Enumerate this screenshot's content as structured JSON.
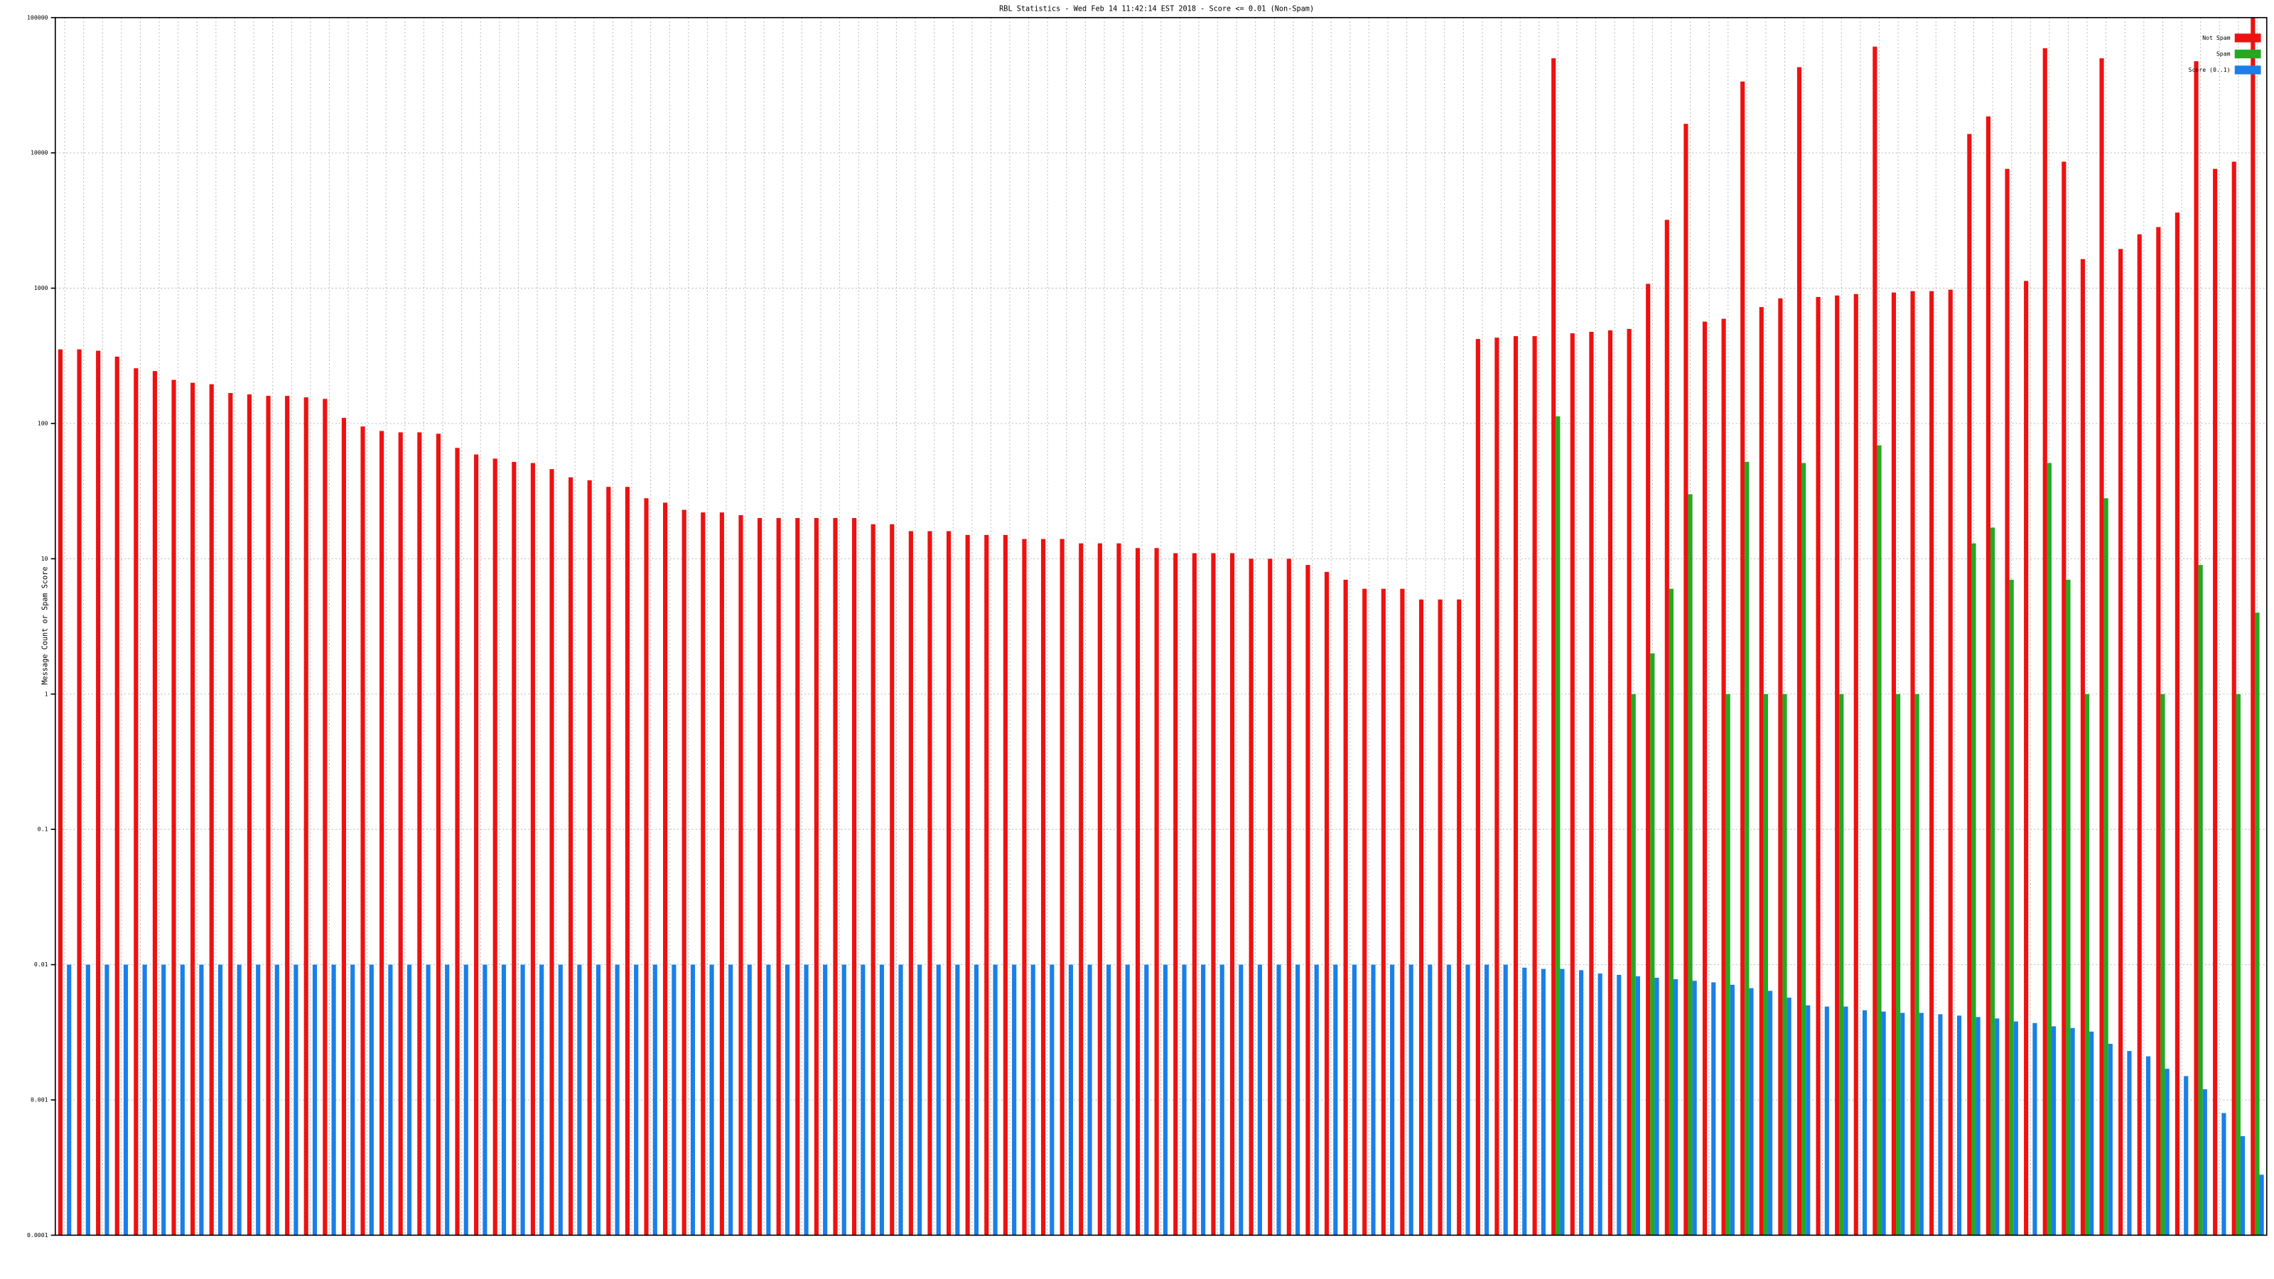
{
  "chart_data": {
    "type": "bar",
    "title": "RBL Statistics - Wed Feb 14 11:42:14 EST 2018 - Score <= 0.01 (Non-Spam)",
    "y_label": "Message Count or Spam Score",
    "yscale": "log",
    "grid": true,
    "legend": "upper right",
    "ylim": [
      0.0001,
      100000
    ],
    "yticks": [
      0.0001,
      0.001,
      0.01,
      0.1,
      1,
      10,
      100,
      1000,
      10000,
      100000
    ],
    "categories": [
      null,
      null,
      null,
      null,
      null,
      null,
      null,
      null,
      null,
      null,
      null,
      null,
      null,
      null,
      null,
      null,
      null,
      null,
      null,
      null,
      null,
      null,
      null,
      null,
      null,
      null,
      null,
      null,
      null,
      null,
      null,
      null,
      null,
      null,
      null,
      null,
      null,
      null,
      null,
      null,
      null,
      null,
      null,
      null,
      null,
      null,
      null,
      null,
      null,
      null,
      null,
      null,
      null,
      null,
      null,
      null,
      null,
      null,
      null,
      null,
      null,
      null,
      null,
      null,
      null,
      null,
      null,
      null,
      null,
      null,
      null,
      null,
      null,
      null,
      null,
      null,
      null,
      null,
      null,
      null,
      null,
      null,
      null,
      null,
      null,
      null,
      null,
      null,
      null,
      null,
      null,
      null,
      null,
      null,
      null,
      null,
      null,
      null,
      null,
      null,
      null,
      null,
      null,
      null,
      null,
      null,
      null,
      null,
      null,
      null,
      null,
      null,
      null,
      null,
      null,
      null,
      null
    ],
    "series": [
      {
        "name": "Not Spam",
        "color": "#ee1111",
        "values": [
          353,
          353,
          345,
          312,
          256,
          244,
          210,
          200,
          195,
          168,
          164,
          160,
          160,
          156,
          152,
          110,
          95,
          88,
          86,
          86,
          84,
          66,
          59,
          55,
          52,
          51,
          46,
          40,
          38,
          34,
          34,
          28,
          26,
          23,
          22,
          22,
          21,
          20,
          20,
          20,
          20,
          20,
          20,
          18,
          18,
          16,
          16,
          16,
          15,
          15,
          15,
          14,
          14,
          14,
          13,
          13,
          13,
          12,
          12,
          11,
          11,
          11,
          11,
          10,
          10,
          10,
          9,
          8,
          7,
          6,
          6,
          6,
          5,
          5,
          5,
          421,
          431,
          442,
          442,
          50000,
          464,
          476,
          488,
          500,
          1077,
          3200,
          16400,
          566,
          594,
          33700,
          725,
          841,
          43000,
          861,
          883,
          905,
          61000,
          929,
          951,
          951,
          975,
          13800,
          18600,
          7620,
          1132,
          59400,
          8610,
          1641,
          50000,
          1950,
          2500,
          2830,
          3620,
          47600,
          7620,
          8610,
          100000
        ]
      },
      {
        "name": "Spam",
        "color": "#22aa22",
        "values": [
          null,
          null,
          null,
          null,
          null,
          null,
          null,
          null,
          null,
          null,
          null,
          null,
          null,
          null,
          null,
          null,
          null,
          null,
          null,
          null,
          null,
          null,
          null,
          null,
          null,
          null,
          null,
          null,
          null,
          null,
          null,
          null,
          null,
          null,
          null,
          null,
          null,
          null,
          null,
          null,
          null,
          null,
          null,
          null,
          null,
          null,
          null,
          null,
          null,
          null,
          null,
          null,
          null,
          null,
          null,
          null,
          null,
          null,
          null,
          null,
          null,
          null,
          null,
          null,
          null,
          null,
          null,
          null,
          null,
          null,
          null,
          null,
          null,
          null,
          null,
          null,
          null,
          null,
          null,
          113,
          null,
          null,
          null,
          1,
          2,
          6,
          30,
          null,
          1,
          52,
          1,
          1,
          51,
          null,
          1,
          null,
          69,
          1,
          1,
          null,
          null,
          13,
          17,
          7,
          null,
          51,
          7,
          1,
          28,
          null,
          null,
          1,
          null,
          9,
          null,
          1,
          4
        ]
      },
      {
        "name": "Score (0..1)",
        "color": "#1a7fe8",
        "values": [
          0.01,
          0.01,
          0.01,
          0.01,
          0.01,
          0.01,
          0.01,
          0.01,
          0.01,
          0.01,
          0.01,
          0.01,
          0.01,
          0.01,
          0.01,
          0.01,
          0.01,
          0.01,
          0.01,
          0.01,
          0.01,
          0.01,
          0.01,
          0.01,
          0.01,
          0.01,
          0.01,
          0.01,
          0.01,
          0.01,
          0.01,
          0.01,
          0.01,
          0.01,
          0.01,
          0.01,
          0.01,
          0.01,
          0.01,
          0.01,
          0.01,
          0.01,
          0.01,
          0.01,
          0.01,
          0.01,
          0.01,
          0.01,
          0.01,
          0.01,
          0.01,
          0.01,
          0.01,
          0.01,
          0.01,
          0.01,
          0.01,
          0.01,
          0.01,
          0.01,
          0.01,
          0.01,
          0.01,
          0.01,
          0.01,
          0.01,
          0.01,
          0.01,
          0.01,
          0.01,
          0.01,
          0.01,
          0.01,
          0.01,
          0.01,
          0.01,
          0.01,
          0.0095,
          0.0093,
          0.0093,
          0.0091,
          0.0086,
          0.0084,
          0.0082,
          0.008,
          0.0078,
          0.0076,
          0.0074,
          0.0071,
          0.0067,
          0.0064,
          0.0057,
          0.005,
          0.0049,
          0.0049,
          0.0046,
          0.0045,
          0.0044,
          0.0044,
          0.0043,
          0.0042,
          0.0041,
          0.004,
          0.0038,
          0.0037,
          0.0035,
          0.0034,
          0.0032,
          0.0026,
          0.0023,
          0.0021,
          0.0017,
          0.0015,
          0.0012,
          0.0008,
          0.00054,
          0.00028
        ]
      }
    ]
  }
}
